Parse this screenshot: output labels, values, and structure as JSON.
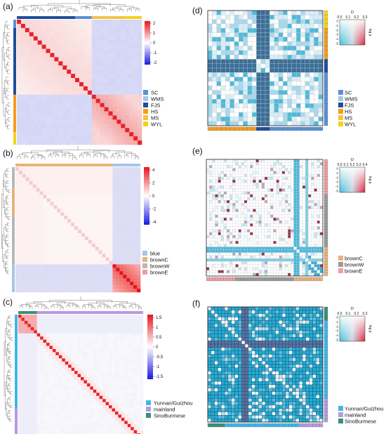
{
  "panels": [
    {
      "id": "a",
      "label": "(a)",
      "type": "heatmap",
      "colorbar_ticks": [
        "2",
        "1",
        "0",
        "-1",
        "-2"
      ],
      "legend": [
        {
          "name": "SC",
          "color": "#5b8fd6"
        },
        {
          "name": "WMS",
          "color": "#a8c4ea"
        },
        {
          "name": "FJS",
          "color": "#1f4e9c"
        },
        {
          "name": "HS",
          "color": "#f39c1f"
        },
        {
          "name": "MS",
          "color": "#f7c244"
        },
        {
          "name": "WYL",
          "color": "#f5d21a"
        }
      ]
    },
    {
      "id": "b",
      "label": "(b)",
      "type": "heatmap",
      "colorbar_ticks": [
        "4",
        "2",
        "0",
        "-2",
        "-4"
      ],
      "legend": [
        {
          "name": "blue",
          "color": "#a9c4e6"
        },
        {
          "name": "brownC",
          "color": "#e9b27b"
        },
        {
          "name": "brownW",
          "color": "#b8b8b8"
        },
        {
          "name": "brownE",
          "color": "#f09da4"
        }
      ]
    },
    {
      "id": "c",
      "label": "(c)",
      "type": "heatmap",
      "colorbar_ticks": [
        "1.5",
        "1",
        "0.5",
        "0",
        "-0.5",
        "-1",
        "-1.5"
      ],
      "legend": [
        {
          "name": "Yunnan/Guizhou",
          "color": "#3fb7e8"
        },
        {
          "name": "mainland",
          "color": "#b59ae0"
        },
        {
          "name": "SinoBurmese",
          "color": "#3a8f7a"
        }
      ]
    },
    {
      "id": "d",
      "label": "(d)",
      "type": "heatmap",
      "key": {
        "title": "D",
        "xticks": [
          "0.0",
          "0.1",
          "0.2",
          "0.3"
        ],
        "ylabel": "log p",
        "yticks": [
          "0",
          "-1",
          "-2",
          "-3",
          "-4",
          "-5"
        ]
      },
      "legend": [
        {
          "name": "SC",
          "color": "#5b8fd6"
        },
        {
          "name": "WMS",
          "color": "#a8c4ea"
        },
        {
          "name": "FJS",
          "color": "#1f4e9c"
        },
        {
          "name": "HS",
          "color": "#f39c1f"
        },
        {
          "name": "MS",
          "color": "#f7c244"
        },
        {
          "name": "WYL",
          "color": "#f5d21a"
        }
      ]
    },
    {
      "id": "e",
      "label": "(e)",
      "type": "heatmap",
      "key": {
        "title": "D",
        "xticks": [
          "0.0",
          "0.1",
          "0.2",
          "0.3",
          "0.4"
        ],
        "ylabel": "log p",
        "yticks": [
          "0",
          "-1",
          "-2",
          "-3",
          "-4",
          "-5"
        ]
      },
      "legend": [
        {
          "name": "brownC",
          "color": "#e9b27b"
        },
        {
          "name": "brownW",
          "color": "#9a9a9a"
        },
        {
          "name": "brownE",
          "color": "#f09da4"
        }
      ]
    },
    {
      "id": "f",
      "label": "(f)",
      "type": "heatmap",
      "key": {
        "title": "D",
        "xticks": [
          "0.0",
          "0.1",
          "0.2",
          "0.3"
        ],
        "ylabel": "log p",
        "yticks": [
          "0",
          "-1",
          "-2",
          "-3",
          "-4",
          "-5"
        ]
      },
      "legend": [
        {
          "name": "Yunnan/Guizhou",
          "color": "#3fb7e8"
        },
        {
          "name": "mainland",
          "color": "#b59ae0"
        },
        {
          "name": "SinoBurmese",
          "color": "#3a8f7a"
        }
      ]
    }
  ],
  "chart_data": [
    {
      "type": "heatmap",
      "panel": "a",
      "colorbar_range": [
        -2,
        2
      ]
    },
    {
      "type": "heatmap",
      "panel": "b",
      "colorbar_range": [
        -4,
        4
      ]
    },
    {
      "type": "heatmap",
      "panel": "c",
      "colorbar_range": [
        -1.5,
        1.5
      ]
    },
    {
      "type": "heatmap",
      "panel": "d",
      "key_D_range": [
        0,
        0.3
      ],
      "key_logp_range": [
        -5,
        0
      ]
    },
    {
      "type": "heatmap",
      "panel": "e",
      "key_D_range": [
        0,
        0.4
      ],
      "key_logp_range": [
        -5,
        0
      ]
    },
    {
      "type": "heatmap",
      "panel": "f",
      "key_D_range": [
        0,
        0.3
      ],
      "key_logp_range": [
        -5,
        0
      ]
    }
  ]
}
